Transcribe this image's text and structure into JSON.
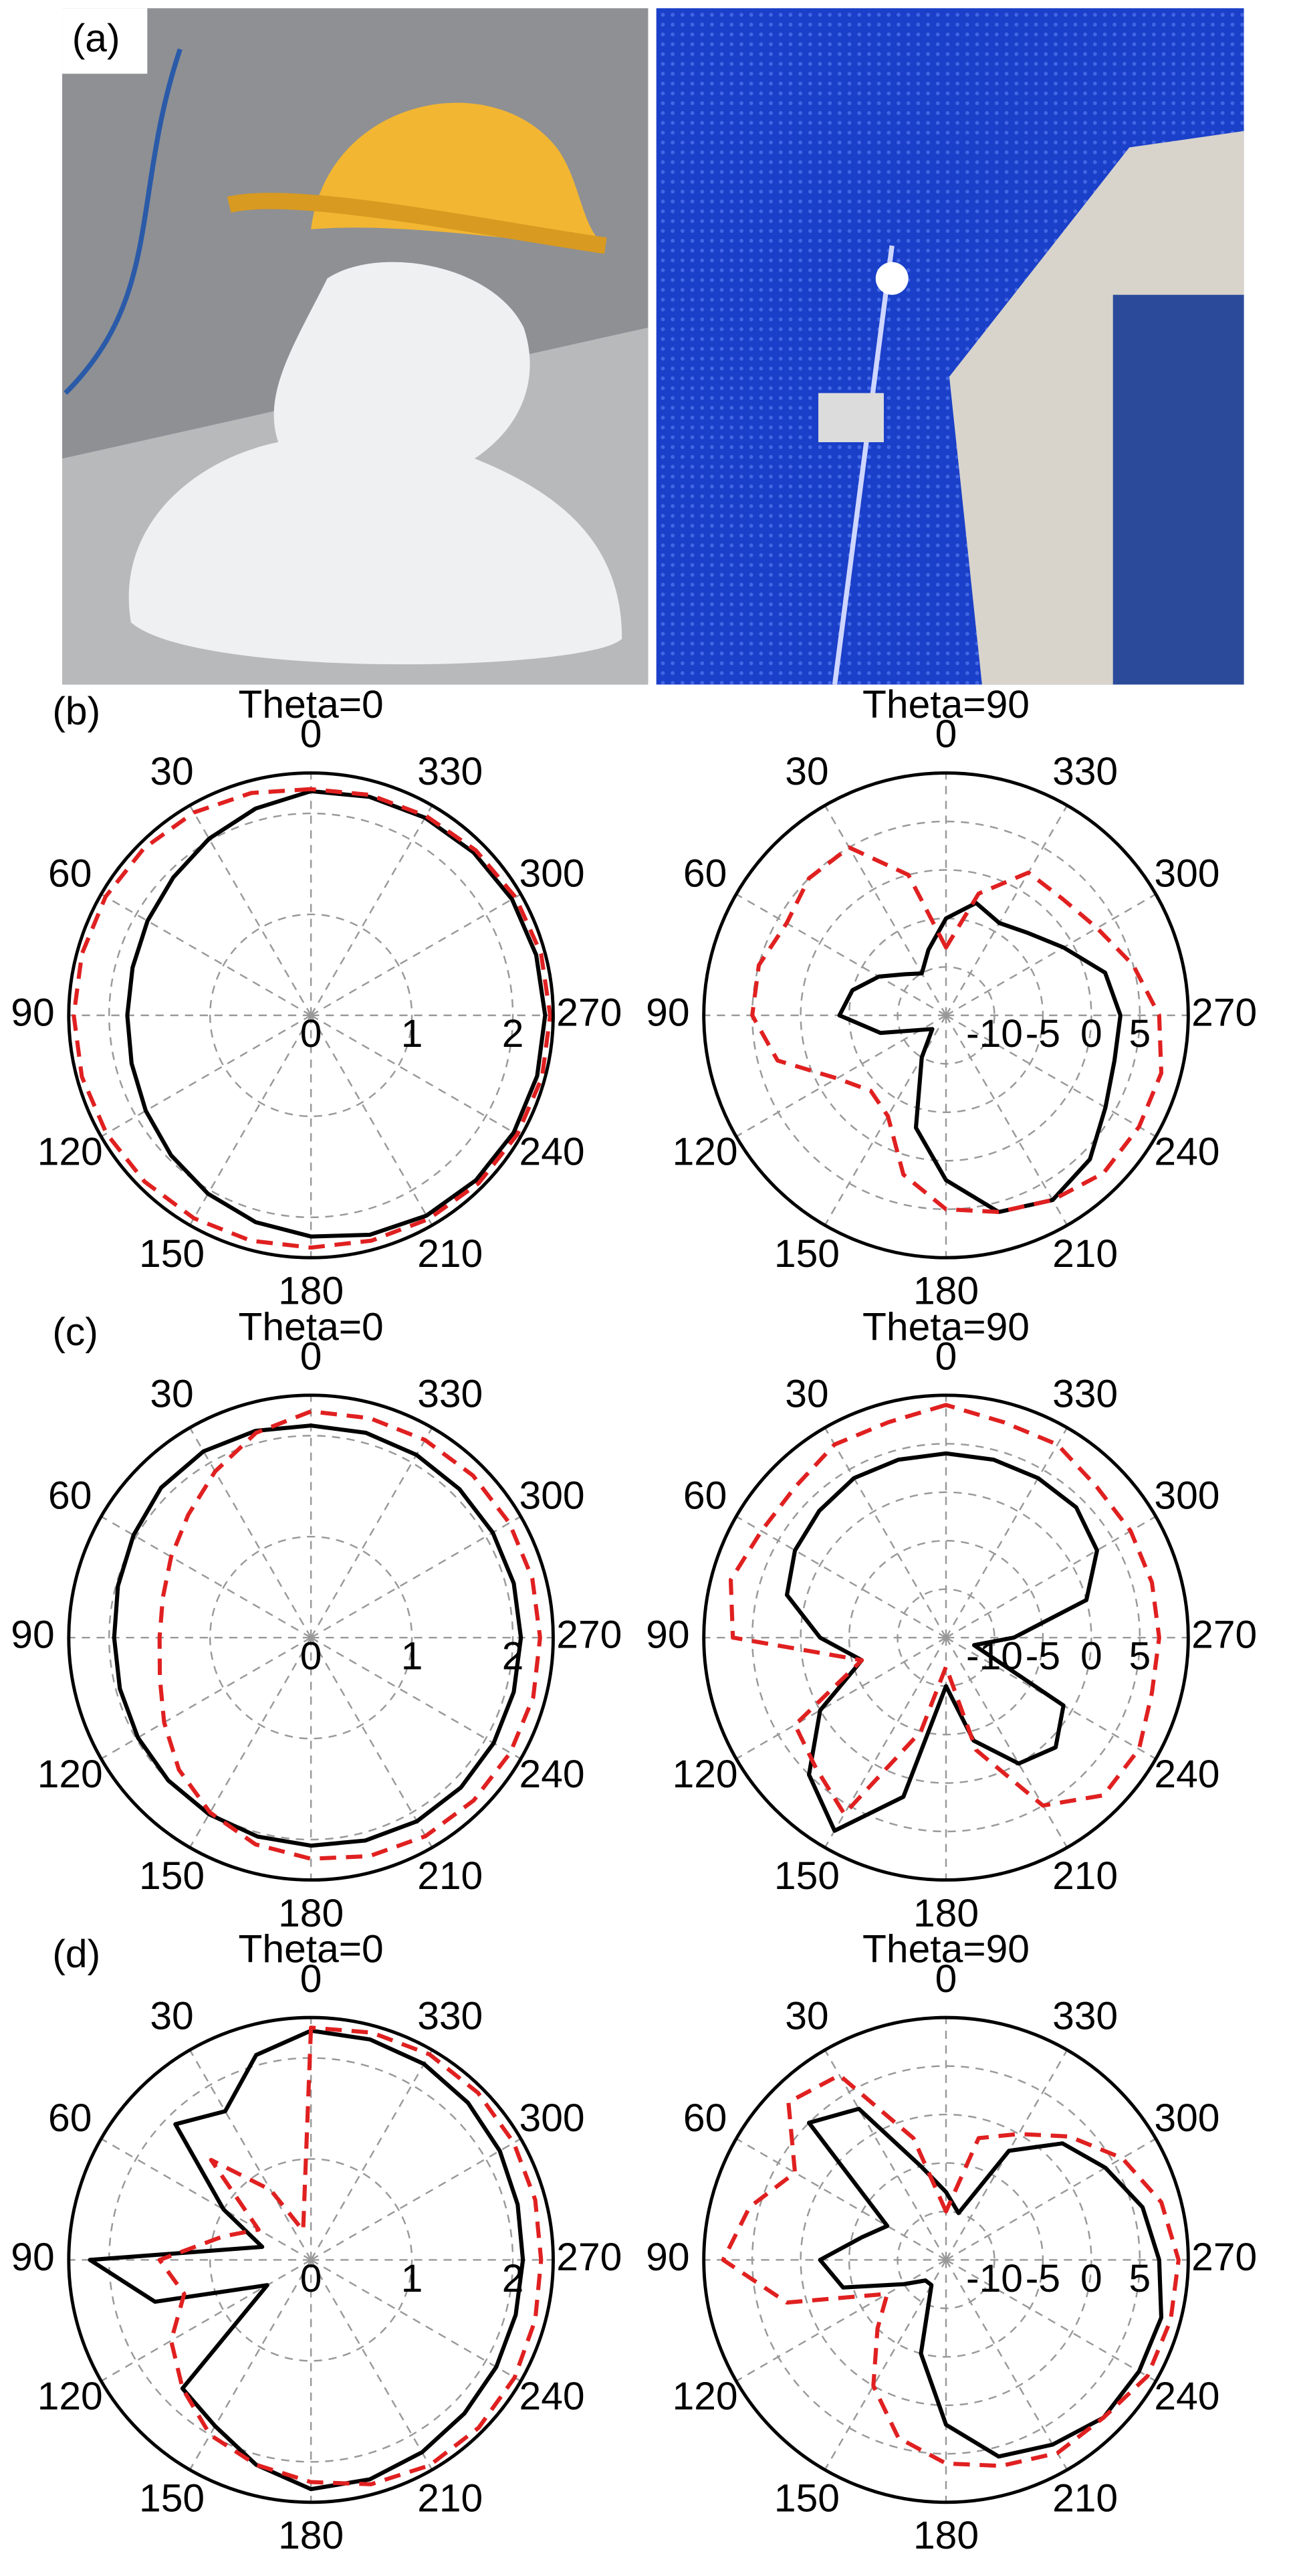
{
  "panel_labels": [
    "(a)",
    "(b)",
    "(c)",
    "(d)"
  ],
  "chart_data": [
    {
      "type": "polar",
      "title": "Theta=0",
      "zero": "top",
      "direction": "counterclockwise",
      "grid": true,
      "theta": [
        0,
        15,
        30,
        45,
        60,
        75,
        90,
        105,
        120,
        135,
        150,
        165,
        180,
        195,
        210,
        225,
        240,
        255,
        270,
        285,
        300,
        315,
        330,
        345
      ],
      "thetaticks": [
        0,
        30,
        60,
        90,
        120,
        150,
        180,
        210,
        240,
        270,
        300,
        330
      ],
      "rlim": [
        0,
        2.4
      ],
      "rticks": [
        0,
        1,
        2
      ],
      "series": [
        {
          "color": "#000000",
          "dash": "solid",
          "values": [
            2.22,
            2.12,
            2.02,
            1.93,
            1.87,
            1.83,
            1.82,
            1.84,
            1.89,
            1.96,
            2.04,
            2.12,
            2.19,
            2.25,
            2.29,
            2.31,
            2.32,
            2.32,
            2.32,
            2.31,
            2.3,
            2.28,
            2.26,
            2.24
          ]
        },
        {
          "color": "#e02020",
          "dash": "dashed",
          "values": [
            2.24,
            2.28,
            2.32,
            2.34,
            2.35,
            2.35,
            2.35,
            2.35,
            2.34,
            2.33,
            2.32,
            2.31,
            2.3,
            2.31,
            2.33,
            2.35,
            2.36,
            2.37,
            2.37,
            2.36,
            2.34,
            2.31,
            2.28,
            2.26
          ]
        }
      ]
    },
    {
      "type": "polar",
      "title": "Theta=90",
      "zero": "top",
      "direction": "counterclockwise",
      "grid": true,
      "theta": [
        0,
        15,
        30,
        45,
        60,
        75,
        90,
        105,
        120,
        135,
        150,
        165,
        180,
        195,
        210,
        225,
        240,
        255,
        270,
        285,
        300,
        315,
        330,
        345
      ],
      "thetaticks": [
        0,
        30,
        60,
        90,
        120,
        150,
        180,
        210,
        240,
        270,
        300,
        330
      ],
      "rlim": [
        -15,
        10
      ],
      "rticks": [
        -10,
        -5,
        0,
        5
      ],
      "series": [
        {
          "color": "#000000",
          "dash": "solid",
          "values": [
            -5,
            -8,
            -10,
            -9,
            -7,
            -5,
            -4,
            -8,
            -12,
            -13,
            -10,
            -3,
            2,
            6,
            7,
            6,
            4,
            3,
            3,
            2,
            -1,
            -3,
            -4,
            -3
          ]
        },
        {
          "color": "#e02020",
          "dash": "dashed",
          "values": [
            -8,
            0,
            5,
            5,
            4,
            5,
            5,
            3,
            -2,
            -4,
            -3,
            2,
            5,
            6,
            7,
            8,
            8,
            8,
            7,
            5,
            3,
            2,
            2,
            -2
          ]
        }
      ]
    },
    {
      "type": "polar",
      "title": "Theta=0",
      "zero": "top",
      "direction": "counterclockwise",
      "grid": true,
      "theta": [
        0,
        15,
        30,
        45,
        60,
        75,
        90,
        105,
        120,
        135,
        150,
        165,
        180,
        195,
        210,
        225,
        240,
        255,
        270,
        285,
        300,
        315,
        330,
        345
      ],
      "thetaticks": [
        0,
        30,
        60,
        90,
        120,
        150,
        180,
        210,
        240,
        270,
        300,
        330
      ],
      "rlim": [
        0,
        2.4
      ],
      "rticks": [
        0,
        1,
        2
      ],
      "series": [
        {
          "color": "#000000",
          "dash": "solid",
          "values": [
            2.1,
            2.12,
            2.13,
            2.1,
            2.03,
            1.98,
            1.95,
            1.96,
            1.98,
            2.0,
            2.02,
            2.04,
            2.06,
            2.08,
            2.1,
            2.1,
            2.09,
            2.08,
            2.08,
            2.08,
            2.08,
            2.08,
            2.09,
            2.1
          ]
        },
        {
          "color": "#e02020",
          "dash": "dashed",
          "values": [
            2.24,
            2.1,
            1.9,
            1.72,
            1.6,
            1.52,
            1.5,
            1.55,
            1.68,
            1.85,
            2.0,
            2.12,
            2.19,
            2.24,
            2.27,
            2.28,
            2.28,
            2.28,
            2.27,
            2.27,
            2.27,
            2.27,
            2.26,
            2.25
          ]
        }
      ]
    },
    {
      "type": "polar",
      "title": "Theta=90",
      "zero": "top",
      "direction": "counterclockwise",
      "grid": true,
      "theta": [
        0,
        15,
        30,
        45,
        60,
        75,
        90,
        105,
        120,
        135,
        150,
        165,
        180,
        195,
        210,
        225,
        240,
        255,
        270,
        285,
        300,
        315,
        330,
        345
      ],
      "thetaticks": [
        0,
        30,
        60,
        90,
        120,
        150,
        180,
        210,
        240,
        270,
        300,
        330
      ],
      "rlim": [
        -15,
        10
      ],
      "rticks": [
        -10,
        -5,
        0,
        5
      ],
      "series": [
        {
          "color": "#000000",
          "dash": "solid",
          "values": [
            4,
            4,
            4,
            3.5,
            3,
            2,
            -2,
            -6,
            0,
            5,
            8,
            2,
            -10,
            -4,
            0,
            1,
            -1,
            -12,
            -8,
            0,
            3,
            4,
            4,
            4
          ]
        },
        {
          "color": "#e02020",
          "dash": "dashed",
          "values": [
            9,
            8,
            8,
            7,
            7,
            8,
            7,
            -6,
            3,
            4,
            6,
            -5,
            -12,
            -3,
            5,
            8,
            8,
            7,
            7,
            7,
            7,
            7,
            8,
            8
          ]
        }
      ]
    },
    {
      "type": "polar",
      "title": "Theta=0",
      "zero": "top",
      "direction": "counterclockwise",
      "grid": true,
      "theta": [
        0,
        15,
        30,
        45,
        60,
        75,
        90,
        105,
        120,
        135,
        150,
        165,
        180,
        195,
        210,
        225,
        240,
        255,
        270,
        285,
        300,
        315,
        330,
        345
      ],
      "thetaticks": [
        0,
        30,
        60,
        90,
        120,
        150,
        180,
        210,
        240,
        270,
        300,
        330
      ],
      "rlim": [
        0,
        2.4
      ],
      "rticks": [
        0,
        1,
        2
      ],
      "series": [
        {
          "color": "#000000",
          "dash": "solid",
          "values": [
            2.27,
            2.1,
            1.7,
            1.9,
            1.0,
            0.5,
            2.19,
            1.6,
            0.5,
            1.8,
            1.9,
            2.1,
            2.27,
            2.25,
            2.2,
            2.15,
            2.12,
            2.1,
            2.1,
            2.12,
            2.16,
            2.2,
            2.24,
            2.26
          ]
        },
        {
          "color": "#e02020",
          "dash": "dashed",
          "values": [
            2.3,
            0.3,
            0.8,
            1.4,
            0.6,
            0.9,
            1.5,
            1.3,
            1.6,
            1.8,
            2.0,
            2.1,
            2.2,
            2.3,
            2.35,
            2.35,
            2.33,
            2.3,
            2.28,
            2.3,
            2.32,
            2.34,
            2.35,
            2.33
          ]
        }
      ]
    },
    {
      "type": "polar",
      "title": "Theta=90",
      "zero": "top",
      "direction": "counterclockwise",
      "grid": true,
      "theta": [
        0,
        15,
        30,
        45,
        60,
        75,
        90,
        105,
        120,
        135,
        150,
        165,
        180,
        195,
        210,
        225,
        240,
        255,
        270,
        285,
        300,
        315,
        330,
        345
      ],
      "thetaticks": [
        0,
        30,
        60,
        90,
        120,
        150,
        180,
        210,
        240,
        270,
        300,
        330
      ],
      "rlim": [
        -15,
        10
      ],
      "rticks": [
        -10,
        -5,
        0,
        5
      ],
      "series": [
        {
          "color": "#000000",
          "dash": "solid",
          "values": [
            -8,
            -5,
            3,
            5,
            -8,
            -6,
            -2,
            -4,
            -10,
            -12,
            -12,
            -5,
            2,
            6,
            7,
            8,
            8,
            8,
            7,
            6,
            4,
            2,
            -2,
            -10
          ]
        },
        {
          "color": "#e02020",
          "dash": "dashed",
          "values": [
            -10,
            -2,
            7,
            8,
            3,
            6,
            8,
            2,
            -8,
            -5,
            0,
            4,
            6,
            7,
            8,
            8,
            9,
            9,
            9,
            8,
            6,
            3,
            0,
            -2
          ]
        }
      ]
    }
  ]
}
